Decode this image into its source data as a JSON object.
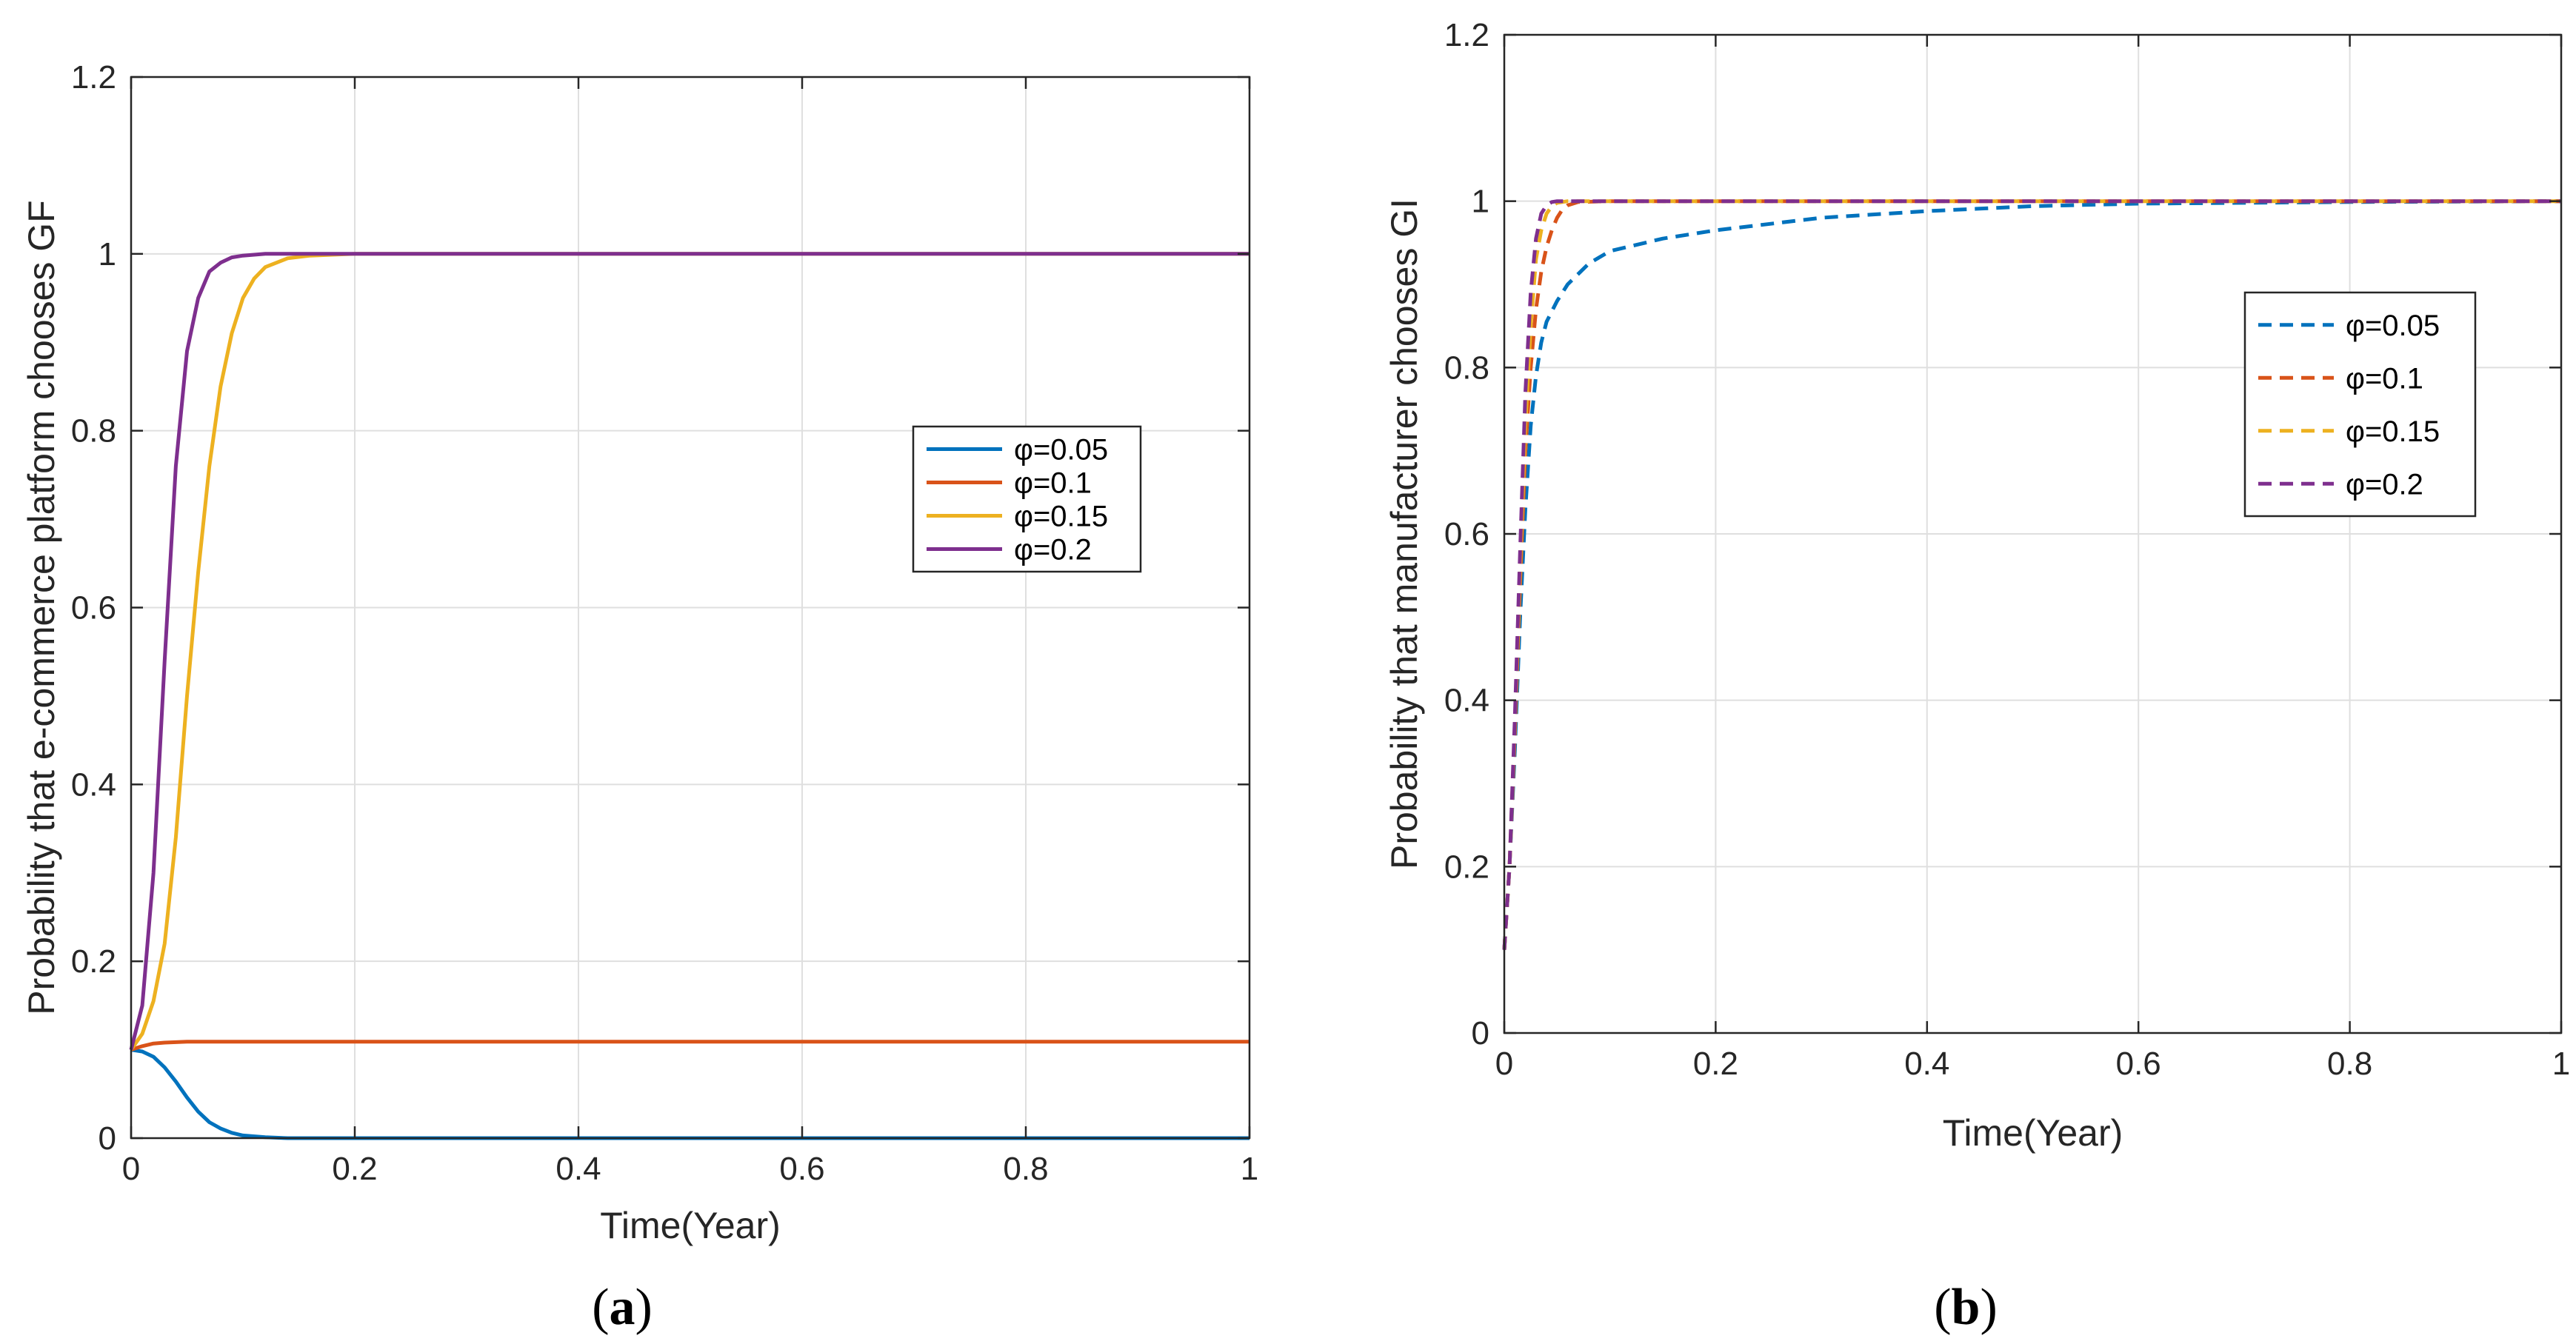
{
  "chart_data": [
    {
      "id": "a",
      "type": "line",
      "caption_letter": "a",
      "caption_open": "(",
      "caption_close": ")",
      "xlabel": "Time(Year)",
      "ylabel": "Probability that e-commerce platform chooses GF",
      "xlim": [
        0,
        1
      ],
      "ylim": [
        0,
        1.2
      ],
      "xticks": [
        "0",
        "0.2",
        "0.4",
        "0.6",
        "0.8",
        "1"
      ],
      "yticks": [
        "0",
        "0.2",
        "0.4",
        "0.6",
        "0.8",
        "1",
        "1.2"
      ],
      "grid": true,
      "legend_position": "right-middle",
      "line_style": "solid",
      "series": [
        {
          "name": "φ=0.05",
          "color": "#0072BD",
          "x": [
            0,
            0.01,
            0.02,
            0.03,
            0.04,
            0.05,
            0.06,
            0.07,
            0.08,
            0.09,
            0.1,
            0.12,
            0.14,
            0.16,
            0.2,
            0.3,
            0.5,
            0.7,
            1.0
          ],
          "y": [
            0.1,
            0.098,
            0.092,
            0.08,
            0.064,
            0.046,
            0.03,
            0.018,
            0.011,
            0.006,
            0.003,
            0.001,
            0.0,
            0.0,
            0.0,
            0.0,
            0.0,
            0.0,
            0.0
          ]
        },
        {
          "name": "φ=0.1",
          "color": "#D95319",
          "x": [
            0,
            0.01,
            0.02,
            0.03,
            0.05,
            0.1,
            0.3,
            0.6,
            1.0
          ],
          "y": [
            0.1,
            0.104,
            0.107,
            0.108,
            0.109,
            0.109,
            0.109,
            0.109,
            0.109
          ]
        },
        {
          "name": "φ=0.15",
          "color": "#EDB120",
          "x": [
            0,
            0.01,
            0.02,
            0.03,
            0.04,
            0.05,
            0.06,
            0.07,
            0.08,
            0.09,
            0.1,
            0.11,
            0.12,
            0.14,
            0.16,
            0.18,
            0.2,
            0.25,
            0.4,
            0.7,
            1.0
          ],
          "y": [
            0.1,
            0.118,
            0.155,
            0.22,
            0.34,
            0.5,
            0.64,
            0.76,
            0.85,
            0.91,
            0.95,
            0.972,
            0.985,
            0.995,
            0.998,
            0.999,
            1.0,
            1.0,
            1.0,
            1.0,
            1.0
          ]
        },
        {
          "name": "φ=0.2",
          "color": "#7E2F8E",
          "x": [
            0,
            0.01,
            0.02,
            0.03,
            0.04,
            0.05,
            0.06,
            0.07,
            0.08,
            0.09,
            0.1,
            0.11,
            0.12,
            0.14,
            0.2,
            0.4,
            0.7,
            1.0
          ],
          "y": [
            0.1,
            0.15,
            0.3,
            0.54,
            0.76,
            0.89,
            0.95,
            0.98,
            0.99,
            0.996,
            0.998,
            0.999,
            1.0,
            1.0,
            1.0,
            1.0,
            1.0,
            1.0
          ]
        }
      ]
    },
    {
      "id": "b",
      "type": "line",
      "caption_letter": "b",
      "caption_open": "(",
      "caption_close": ")",
      "xlabel": "Time(Year)",
      "ylabel": "Probability that manufacturer chooses GI",
      "xlim": [
        0,
        1
      ],
      "ylim": [
        0,
        1.2
      ],
      "xticks": [
        "0",
        "0.2",
        "0.4",
        "0.6",
        "0.8",
        "1"
      ],
      "yticks": [
        "0",
        "0.2",
        "0.4",
        "0.6",
        "0.8",
        "1",
        "1.2"
      ],
      "grid": true,
      "legend_position": "right-upper",
      "line_style": "dashed",
      "series": [
        {
          "name": "φ=0.05",
          "color": "#0072BD",
          "x": [
            0,
            0.005,
            0.01,
            0.015,
            0.02,
            0.025,
            0.03,
            0.035,
            0.04,
            0.05,
            0.06,
            0.08,
            0.1,
            0.15,
            0.2,
            0.3,
            0.4,
            0.5,
            0.6,
            0.8,
            1.0
          ],
          "y": [
            0.1,
            0.2,
            0.34,
            0.5,
            0.63,
            0.73,
            0.79,
            0.83,
            0.855,
            0.88,
            0.9,
            0.925,
            0.94,
            0.955,
            0.965,
            0.98,
            0.988,
            0.994,
            0.997,
            0.999,
            1.0
          ]
        },
        {
          "name": "φ=0.1",
          "color": "#D95319",
          "x": [
            0,
            0.005,
            0.01,
            0.015,
            0.02,
            0.025,
            0.03,
            0.035,
            0.04,
            0.045,
            0.05,
            0.055,
            0.06,
            0.07,
            0.1,
            0.3,
            0.6,
            1.0
          ],
          "y": [
            0.1,
            0.2,
            0.36,
            0.54,
            0.7,
            0.8,
            0.87,
            0.915,
            0.945,
            0.965,
            0.98,
            0.99,
            0.995,
            0.999,
            1.0,
            1.0,
            1.0,
            1.0
          ]
        },
        {
          "name": "φ=0.15",
          "color": "#EDB120",
          "x": [
            0,
            0.005,
            0.01,
            0.015,
            0.02,
            0.025,
            0.03,
            0.035,
            0.04,
            0.045,
            0.05,
            0.06,
            0.1,
            0.3,
            0.6,
            1.0
          ],
          "y": [
            0.1,
            0.2,
            0.37,
            0.56,
            0.73,
            0.85,
            0.93,
            0.965,
            0.985,
            0.994,
            0.998,
            1.0,
            1.0,
            1.0,
            1.0,
            1.0
          ]
        },
        {
          "name": "φ=0.2",
          "color": "#7E2F8E",
          "x": [
            0,
            0.005,
            0.01,
            0.015,
            0.02,
            0.025,
            0.03,
            0.035,
            0.04,
            0.045,
            0.05,
            0.1,
            0.3,
            0.6,
            1.0
          ],
          "y": [
            0.1,
            0.2,
            0.38,
            0.58,
            0.77,
            0.89,
            0.955,
            0.985,
            0.995,
            0.999,
            1.0,
            1.0,
            1.0,
            1.0,
            1.0
          ]
        }
      ]
    }
  ]
}
